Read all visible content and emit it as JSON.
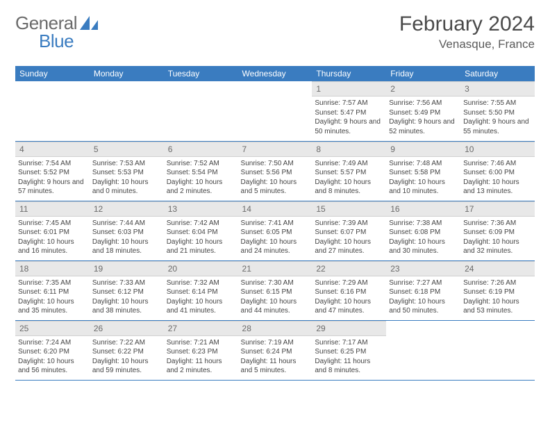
{
  "brand": {
    "part1": "General",
    "part2": "Blue",
    "logo_color": "#3a7cc0"
  },
  "title": "February 2024",
  "location": "Venasque, France",
  "colors": {
    "header_bg": "#3a7cc0",
    "header_fg": "#ffffff",
    "daynum_bg": "#e8e8e8",
    "rule": "#3a7cc0"
  },
  "weekdays": [
    "Sunday",
    "Monday",
    "Tuesday",
    "Wednesday",
    "Thursday",
    "Friday",
    "Saturday"
  ],
  "grid": [
    [
      {
        "empty": true
      },
      {
        "empty": true
      },
      {
        "empty": true
      },
      {
        "empty": true
      },
      {
        "n": 1,
        "sunrise": "7:57 AM",
        "sunset": "5:47 PM",
        "daylight": "9 hours and 50 minutes."
      },
      {
        "n": 2,
        "sunrise": "7:56 AM",
        "sunset": "5:49 PM",
        "daylight": "9 hours and 52 minutes."
      },
      {
        "n": 3,
        "sunrise": "7:55 AM",
        "sunset": "5:50 PM",
        "daylight": "9 hours and 55 minutes."
      }
    ],
    [
      {
        "n": 4,
        "sunrise": "7:54 AM",
        "sunset": "5:52 PM",
        "daylight": "9 hours and 57 minutes."
      },
      {
        "n": 5,
        "sunrise": "7:53 AM",
        "sunset": "5:53 PM",
        "daylight": "10 hours and 0 minutes."
      },
      {
        "n": 6,
        "sunrise": "7:52 AM",
        "sunset": "5:54 PM",
        "daylight": "10 hours and 2 minutes."
      },
      {
        "n": 7,
        "sunrise": "7:50 AM",
        "sunset": "5:56 PM",
        "daylight": "10 hours and 5 minutes."
      },
      {
        "n": 8,
        "sunrise": "7:49 AM",
        "sunset": "5:57 PM",
        "daylight": "10 hours and 8 minutes."
      },
      {
        "n": 9,
        "sunrise": "7:48 AM",
        "sunset": "5:58 PM",
        "daylight": "10 hours and 10 minutes."
      },
      {
        "n": 10,
        "sunrise": "7:46 AM",
        "sunset": "6:00 PM",
        "daylight": "10 hours and 13 minutes."
      }
    ],
    [
      {
        "n": 11,
        "sunrise": "7:45 AM",
        "sunset": "6:01 PM",
        "daylight": "10 hours and 16 minutes."
      },
      {
        "n": 12,
        "sunrise": "7:44 AM",
        "sunset": "6:03 PM",
        "daylight": "10 hours and 18 minutes."
      },
      {
        "n": 13,
        "sunrise": "7:42 AM",
        "sunset": "6:04 PM",
        "daylight": "10 hours and 21 minutes."
      },
      {
        "n": 14,
        "sunrise": "7:41 AM",
        "sunset": "6:05 PM",
        "daylight": "10 hours and 24 minutes."
      },
      {
        "n": 15,
        "sunrise": "7:39 AM",
        "sunset": "6:07 PM",
        "daylight": "10 hours and 27 minutes."
      },
      {
        "n": 16,
        "sunrise": "7:38 AM",
        "sunset": "6:08 PM",
        "daylight": "10 hours and 30 minutes."
      },
      {
        "n": 17,
        "sunrise": "7:36 AM",
        "sunset": "6:09 PM",
        "daylight": "10 hours and 32 minutes."
      }
    ],
    [
      {
        "n": 18,
        "sunrise": "7:35 AM",
        "sunset": "6:11 PM",
        "daylight": "10 hours and 35 minutes."
      },
      {
        "n": 19,
        "sunrise": "7:33 AM",
        "sunset": "6:12 PM",
        "daylight": "10 hours and 38 minutes."
      },
      {
        "n": 20,
        "sunrise": "7:32 AM",
        "sunset": "6:14 PM",
        "daylight": "10 hours and 41 minutes."
      },
      {
        "n": 21,
        "sunrise": "7:30 AM",
        "sunset": "6:15 PM",
        "daylight": "10 hours and 44 minutes."
      },
      {
        "n": 22,
        "sunrise": "7:29 AM",
        "sunset": "6:16 PM",
        "daylight": "10 hours and 47 minutes."
      },
      {
        "n": 23,
        "sunrise": "7:27 AM",
        "sunset": "6:18 PM",
        "daylight": "10 hours and 50 minutes."
      },
      {
        "n": 24,
        "sunrise": "7:26 AM",
        "sunset": "6:19 PM",
        "daylight": "10 hours and 53 minutes."
      }
    ],
    [
      {
        "n": 25,
        "sunrise": "7:24 AM",
        "sunset": "6:20 PM",
        "daylight": "10 hours and 56 minutes."
      },
      {
        "n": 26,
        "sunrise": "7:22 AM",
        "sunset": "6:22 PM",
        "daylight": "10 hours and 59 minutes."
      },
      {
        "n": 27,
        "sunrise": "7:21 AM",
        "sunset": "6:23 PM",
        "daylight": "11 hours and 2 minutes."
      },
      {
        "n": 28,
        "sunrise": "7:19 AM",
        "sunset": "6:24 PM",
        "daylight": "11 hours and 5 minutes."
      },
      {
        "n": 29,
        "sunrise": "7:17 AM",
        "sunset": "6:25 PM",
        "daylight": "11 hours and 8 minutes."
      },
      {
        "empty": true
      },
      {
        "empty": true
      }
    ]
  ]
}
